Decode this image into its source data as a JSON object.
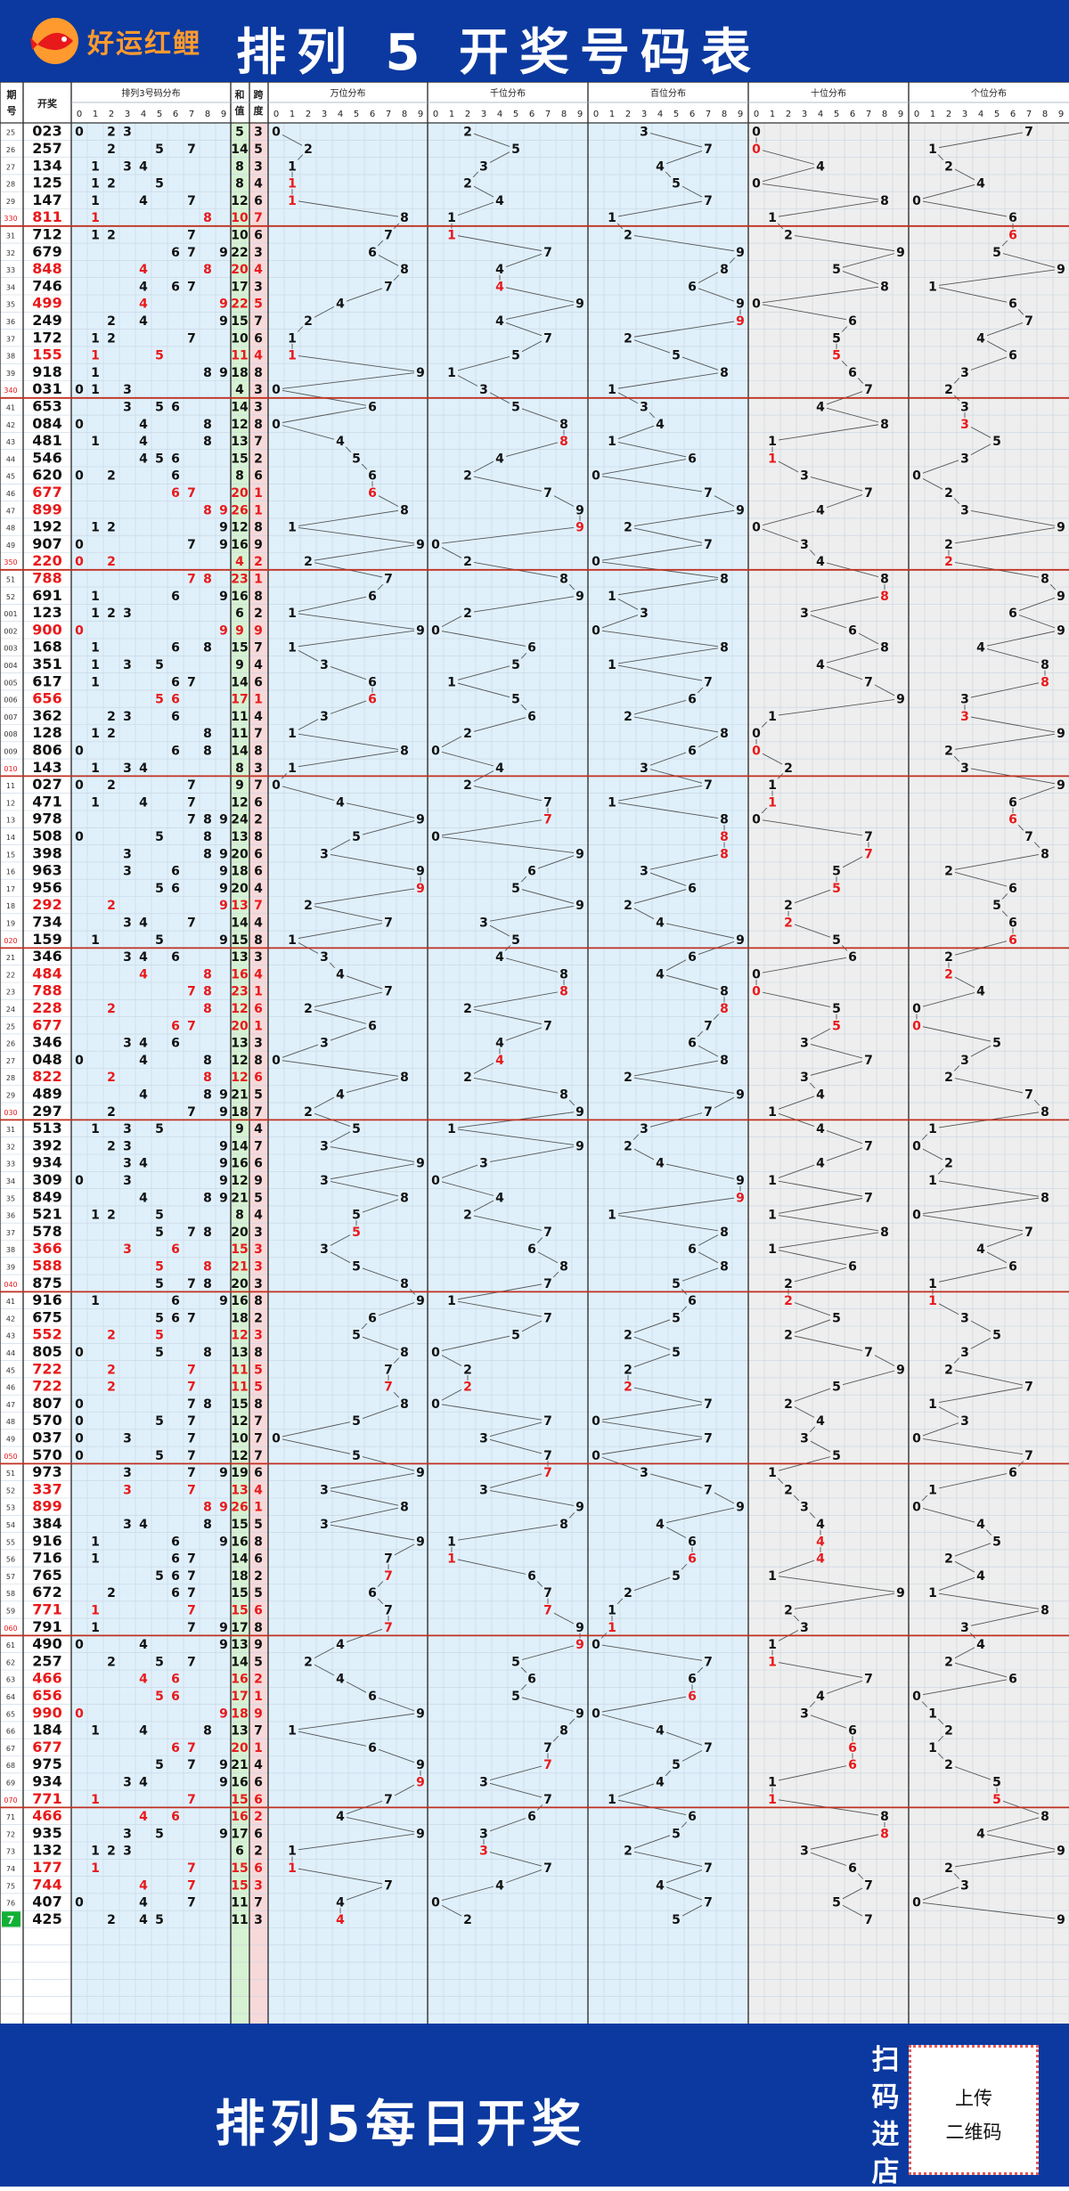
{
  "header": {
    "brand": "好运红鲤",
    "title": "排列 5 开奖号码表"
  },
  "footer": {
    "slogan": "排列5每日开奖",
    "scan": [
      "扫",
      "码",
      "进",
      "店"
    ],
    "qr": [
      "上传",
      "二维码"
    ]
  },
  "colors": {
    "brand_blue": "#0b39a0",
    "red": "#e8191b",
    "panel_blue": "#dff0fb",
    "panel_gray": "#eeeeee",
    "sum_green": "#d6f2d2",
    "span_pink": "#f7d9da",
    "line": "#c03020",
    "current": "#11b035"
  },
  "columns": {
    "period": "期号",
    "draw": "开奖",
    "sum": "和值",
    "span": "跨度",
    "p3": "排列3号码分布",
    "w": "万位分布",
    "q": "千位分布",
    "b": "百位分布",
    "s": "十位分布",
    "g": "个位分布",
    "digits": [
      "0",
      "1",
      "2",
      "3",
      "4",
      "5",
      "6",
      "7",
      "8",
      "9"
    ]
  },
  "chart_data": {
    "type": "table",
    "title": "排列 5 开奖号码表",
    "columns": [
      "期号",
      "开奖",
      "排列3号码分布",
      "和值",
      "跨度",
      "万位分布",
      "千位分布",
      "百位分布",
      "十位分布",
      "个位分布"
    ],
    "rows": [
      {
        "p": "25",
        "d": "02307"
      },
      {
        "p": "26",
        "d": "25701"
      },
      {
        "p": "27",
        "d": "13442"
      },
      {
        "p": "28",
        "d": "12504"
      },
      {
        "p": "29",
        "d": "14780"
      },
      {
        "p": "330",
        "d": "81116"
      },
      {
        "p": "31",
        "d": "71226"
      },
      {
        "p": "32",
        "d": "67995"
      },
      {
        "p": "33",
        "d": "84859"
      },
      {
        "p": "34",
        "d": "74681"
      },
      {
        "p": "35",
        "d": "49906"
      },
      {
        "p": "36",
        "d": "24967"
      },
      {
        "p": "37",
        "d": "17254"
      },
      {
        "p": "38",
        "d": "15556"
      },
      {
        "p": "39",
        "d": "91863"
      },
      {
        "p": "340",
        "d": "03172"
      },
      {
        "p": "41",
        "d": "65343"
      },
      {
        "p": "42",
        "d": "08483"
      },
      {
        "p": "43",
        "d": "48115"
      },
      {
        "p": "44",
        "d": "54613"
      },
      {
        "p": "45",
        "d": "62030"
      },
      {
        "p": "46",
        "d": "67772"
      },
      {
        "p": "47",
        "d": "89943"
      },
      {
        "p": "48",
        "d": "19209"
      },
      {
        "p": "49",
        "d": "90732"
      },
      {
        "p": "350",
        "d": "22042"
      },
      {
        "p": "51",
        "d": "78888"
      },
      {
        "p": "52",
        "d": "69189"
      },
      {
        "p": "001",
        "d": "12336"
      },
      {
        "p": "002",
        "d": "90069"
      },
      {
        "p": "003",
        "d": "16884"
      },
      {
        "p": "004",
        "d": "35148"
      },
      {
        "p": "005",
        "d": "61778"
      },
      {
        "p": "006",
        "d": "65693"
      },
      {
        "p": "007",
        "d": "36213"
      },
      {
        "p": "008",
        "d": "12809"
      },
      {
        "p": "009",
        "d": "80602"
      },
      {
        "p": "010",
        "d": "14323"
      },
      {
        "p": "11",
        "d": "02719"
      },
      {
        "p": "12",
        "d": "47116"
      },
      {
        "p": "13",
        "d": "97806"
      },
      {
        "p": "14",
        "d": "50877"
      },
      {
        "p": "15",
        "d": "39878"
      },
      {
        "p": "16",
        "d": "96352"
      },
      {
        "p": "17",
        "d": "95656"
      },
      {
        "p": "18",
        "d": "29225"
      },
      {
        "p": "19",
        "d": "73426"
      },
      {
        "p": "020",
        "d": "15956"
      },
      {
        "p": "21",
        "d": "34662"
      },
      {
        "p": "22",
        "d": "48402"
      },
      {
        "p": "23",
        "d": "78804"
      },
      {
        "p": "24",
        "d": "22850"
      },
      {
        "p": "25",
        "d": "67750"
      },
      {
        "p": "26",
        "d": "34635"
      },
      {
        "p": "27",
        "d": "04873"
      },
      {
        "p": "28",
        "d": "82232"
      },
      {
        "p": "29",
        "d": "48947"
      },
      {
        "p": "030",
        "d": "29718"
      },
      {
        "p": "31",
        "d": "51341"
      },
      {
        "p": "32",
        "d": "39270"
      },
      {
        "p": "33",
        "d": "93442"
      },
      {
        "p": "34",
        "d": "30911"
      },
      {
        "p": "35",
        "d": "84978"
      },
      {
        "p": "36",
        "d": "52110"
      },
      {
        "p": "37",
        "d": "57887"
      },
      {
        "p": "38",
        "d": "36614"
      },
      {
        "p": "39",
        "d": "58866"
      },
      {
        "p": "040",
        "d": "87521"
      },
      {
        "p": "41",
        "d": "91621"
      },
      {
        "p": "42",
        "d": "67553"
      },
      {
        "p": "43",
        "d": "55225"
      },
      {
        "p": "44",
        "d": "80573"
      },
      {
        "p": "45",
        "d": "72292"
      },
      {
        "p": "46",
        "d": "72257"
      },
      {
        "p": "47",
        "d": "80721"
      },
      {
        "p": "48",
        "d": "57043"
      },
      {
        "p": "49",
        "d": "03730"
      },
      {
        "p": "050",
        "d": "57057"
      },
      {
        "p": "51",
        "d": "97316"
      },
      {
        "p": "52",
        "d": "33721"
      },
      {
        "p": "53",
        "d": "89930"
      },
      {
        "p": "54",
        "d": "38444"
      },
      {
        "p": "55",
        "d": "91645"
      },
      {
        "p": "56",
        "d": "71642"
      },
      {
        "p": "57",
        "d": "76514"
      },
      {
        "p": "58",
        "d": "67291"
      },
      {
        "p": "59",
        "d": "77128"
      },
      {
        "p": "060",
        "d": "79133"
      },
      {
        "p": "61",
        "d": "49014"
      },
      {
        "p": "62",
        "d": "25712"
      },
      {
        "p": "63",
        "d": "46676"
      },
      {
        "p": "64",
        "d": "65640"
      },
      {
        "p": "65",
        "d": "99031"
      },
      {
        "p": "66",
        "d": "18462"
      },
      {
        "p": "67",
        "d": "67761"
      },
      {
        "p": "68",
        "d": "97562"
      },
      {
        "p": "69",
        "d": "93415"
      },
      {
        "p": "070",
        "d": "77115"
      },
      {
        "p": "71",
        "d": "46688"
      },
      {
        "p": "72",
        "d": "93584"
      },
      {
        "p": "73",
        "d": "13239"
      },
      {
        "p": "74",
        "d": "17762"
      },
      {
        "p": "75",
        "d": "74473"
      },
      {
        "p": "76",
        "d": "40750"
      },
      {
        "p": "77",
        "d": "42579"
      }
    ],
    "legend": "none",
    "grid": true
  }
}
